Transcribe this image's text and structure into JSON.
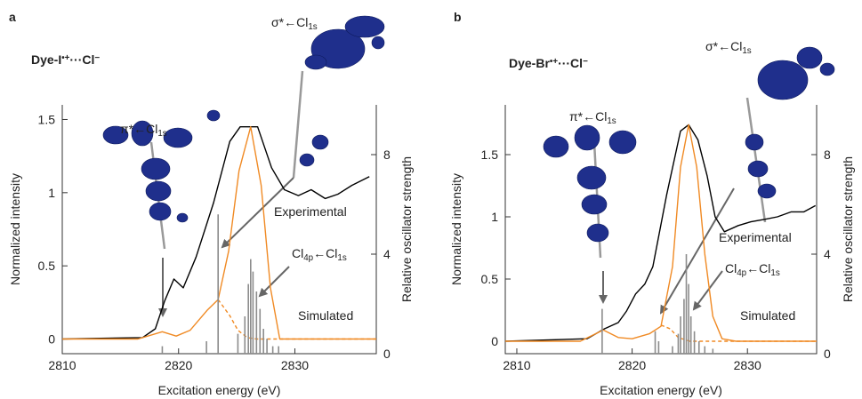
{
  "chart_data": [
    {
      "type": "line",
      "panel_label": "a",
      "title": [
        {
          "t": "Dye-I"
        },
        {
          "sup": "•+"
        },
        {
          "t": "···Cl"
        },
        {
          "sup": "−"
        }
      ],
      "xlabel": "Excitation energy (eV)",
      "ylabel": "Normalized intensity",
      "y2label": "Relative oscillator strength",
      "xlim": [
        2810,
        2837
      ],
      "xticks": [
        2810,
        2820,
        2830
      ],
      "ylim": [
        -0.1,
        1.6
      ],
      "yticks": [
        0,
        0.5,
        1,
        1.5
      ],
      "y2lim": [
        0,
        10
      ],
      "y2ticks": [
        0,
        4,
        8
      ],
      "annotations": [
        [
          {
            "t": "π*←Cl"
          },
          {
            "sub": "1s"
          }
        ],
        [
          {
            "t": "σ*←Cl"
          },
          {
            "sub": "1s"
          }
        ],
        [
          {
            "t": "Cl"
          },
          {
            "sub": "4p"
          },
          {
            "t": "←Cl"
          },
          {
            "sub": "1s"
          }
        ]
      ],
      "series": [
        {
          "name": "Experimental",
          "color": "#000000",
          "style": "solid",
          "x": [
            2810,
            2816.9,
            2818,
            2818.8,
            2819.6,
            2820.4,
            2821.5,
            2823,
            2824.4,
            2825.3,
            2826.8,
            2828,
            2829.1,
            2830.3,
            2831.4,
            2832.6,
            2833.7,
            2834.9,
            2836.4
          ],
          "values": [
            0,
            0.01,
            0.07,
            0.26,
            0.41,
            0.35,
            0.56,
            0.93,
            1.35,
            1.45,
            1.45,
            1.17,
            1.02,
            0.98,
            1.02,
            0.96,
            0.99,
            1.05,
            1.11
          ]
        },
        {
          "name": "Simulated",
          "color": "#f08a24",
          "style": "solid",
          "x": [
            2810,
            2816.5,
            2818.6,
            2819.8,
            2821,
            2822.5,
            2823.4,
            2824.3,
            2825.2,
            2826.2,
            2827.1,
            2827.9,
            2828.7,
            2837
          ],
          "values": [
            0,
            0,
            0.05,
            0.02,
            0.06,
            0.2,
            0.27,
            0.6,
            1.15,
            1.45,
            1.05,
            0.35,
            0,
            0
          ]
        },
        {
          "color": "#f08a24",
          "style": "dashed",
          "x": [
            2823.4,
            2824.4,
            2825.1,
            2825.9,
            2826.7,
            2837
          ],
          "values": [
            0.27,
            0.16,
            0.06,
            0.01,
            0,
            0
          ]
        },
        {
          "color": "#8c8c8c",
          "style": "stick",
          "axis": "y2",
          "x": [
            2818.6,
            2822.4,
            2823.4,
            2825.1,
            2825.7,
            2826,
            2826.2,
            2826.4,
            2826.7,
            2827,
            2827.3,
            2827.6,
            2828.1,
            2828.6
          ],
          "values": [
            0.3,
            0.5,
            5.6,
            0.8,
            1.5,
            2.8,
            3.8,
            3.3,
            2.5,
            1.8,
            1,
            0.6,
            0.3,
            0.3
          ]
        }
      ]
    },
    {
      "type": "line",
      "panel_label": "b",
      "title": [
        {
          "t": "Dye-Br"
        },
        {
          "sup": "•+"
        },
        {
          "t": "···Cl"
        },
        {
          "sup": "−"
        }
      ],
      "xlabel": "Excitation energy (eV)",
      "ylabel": "Normalized intensity",
      "y2label": "Relative oscillator strength",
      "xlim": [
        2809,
        2836
      ],
      "xticks": [
        2810,
        2820,
        2830
      ],
      "ylim": [
        -0.1,
        1.9
      ],
      "yticks": [
        0,
        0.5,
        1,
        1.5
      ],
      "y2lim": [
        0,
        10
      ],
      "y2ticks": [
        0,
        4,
        8
      ],
      "annotations": [
        [
          {
            "t": "π*←Cl"
          },
          {
            "sub": "1s"
          }
        ],
        [
          {
            "t": "σ*←Cl"
          },
          {
            "sub": "1s"
          }
        ],
        [
          {
            "t": "Cl"
          },
          {
            "sub": "4p"
          },
          {
            "t": "←Cl"
          },
          {
            "sub": "1s"
          }
        ]
      ],
      "series": [
        {
          "name": "Experimental",
          "color": "#000000",
          "style": "solid",
          "x": [
            2809,
            2816.1,
            2817.6,
            2818.8,
            2819.5,
            2820.3,
            2821.1,
            2821.8,
            2823,
            2824.2,
            2824.9,
            2825.7,
            2826.5,
            2827.2,
            2828,
            2829.2,
            2830.3,
            2831.5,
            2832.6,
            2833.8,
            2834.9,
            2835.9
          ],
          "values": [
            0,
            0.02,
            0.1,
            0.15,
            0.24,
            0.38,
            0.46,
            0.6,
            1.18,
            1.69,
            1.74,
            1.62,
            1.33,
            1,
            0.88,
            0.93,
            0.96,
            0.98,
            1,
            1.04,
            1.04,
            1.09
          ]
        },
        {
          "name": "Simulated",
          "color": "#f08a24",
          "style": "solid",
          "x": [
            2809,
            2815.5,
            2817.5,
            2818.8,
            2820,
            2821.5,
            2822.5,
            2823.5,
            2824.2,
            2824.9,
            2825.6,
            2826.3,
            2827,
            2827.8,
            2829,
            2836
          ],
          "values": [
            0,
            0,
            0.09,
            0.03,
            0.02,
            0.06,
            0.12,
            0.6,
            1.4,
            1.74,
            1.4,
            0.7,
            0.2,
            0.02,
            0,
            0
          ]
        },
        {
          "color": "#f08a24",
          "style": "dashed",
          "x": [
            2822.5,
            2823.3,
            2824,
            2825,
            2836
          ],
          "values": [
            0.13,
            0.1,
            0.03,
            0,
            0
          ]
        },
        {
          "color": "#8c8c8c",
          "style": "stick",
          "axis": "y2",
          "x": [
            2817.4,
            2822,
            2822.3,
            2823.5,
            2824,
            2824.2,
            2824.5,
            2824.7,
            2824.9,
            2825.1,
            2825.4,
            2825.8,
            2826.3,
            2827
          ],
          "values": [
            1.8,
            0.9,
            0.5,
            0.3,
            0.8,
            1.5,
            2.2,
            4,
            2.8,
            1.5,
            0.9,
            0.5,
            0.3,
            0.2
          ]
        }
      ]
    }
  ]
}
